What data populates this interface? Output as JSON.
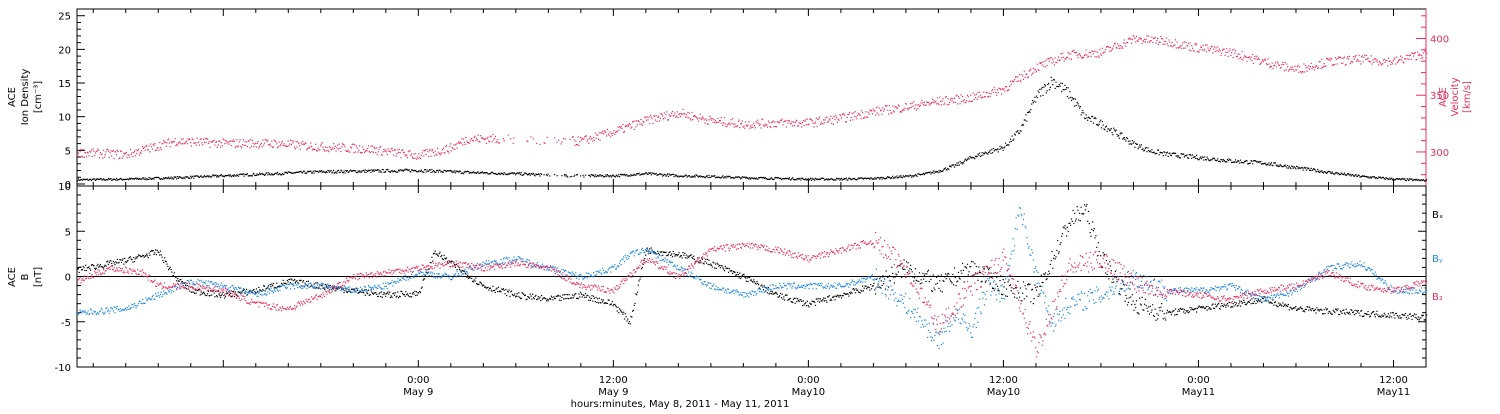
{
  "colors": {
    "black": "#000000",
    "red": "#e8305e",
    "blue": "#1e88e5"
  },
  "x_axis": {
    "title": "hours:minutes, May  8, 2011 - May 11, 2011",
    "range_hours": [
      -21,
      62
    ],
    "ticks": [
      {
        "t": 0,
        "time": "0:00",
        "date": "May 9"
      },
      {
        "t": 12,
        "time": "12:00",
        "date": "May 9"
      },
      {
        "t": 24,
        "time": "0:00",
        "date": "May10"
      },
      {
        "t": 36,
        "time": "12:00",
        "date": "May10"
      },
      {
        "t": 48,
        "time": "0:00",
        "date": "May11"
      },
      {
        "t": 60,
        "time": "12:00",
        "date": "May11"
      }
    ]
  },
  "chart_data": [
    {
      "type": "scatter",
      "panel": "top",
      "left_axis": {
        "label_lines": [
          "ACE",
          "Ion Density",
          "[cm⁻³]"
        ],
        "range": [
          -0.3,
          26
        ],
        "ticks": [
          0,
          5,
          10,
          15,
          20,
          25
        ],
        "color": "black"
      },
      "right_axis": {
        "label_lines": [
          "ACE",
          "Velocity",
          "[km/s]"
        ],
        "range": [
          270,
          426
        ],
        "ticks": [
          300,
          350,
          400
        ],
        "color": "red"
      },
      "series": [
        {
          "axis": "left",
          "color": "black",
          "x": [
            -21,
            -18,
            -15,
            -12,
            -9,
            -6,
            -3,
            0,
            3,
            6,
            9,
            12,
            14,
            16,
            18,
            20,
            22,
            24,
            26,
            28,
            30,
            31,
            32,
            33,
            34,
            35,
            36,
            37,
            38,
            39,
            40,
            41,
            42,
            43,
            44,
            45,
            46,
            48,
            50,
            52,
            54,
            56,
            58,
            60,
            62
          ],
          "y": [
            0.7,
            0.8,
            1.0,
            1.3,
            1.6,
            1.9,
            2.0,
            2.1,
            1.8,
            1.6,
            1.3,
            1.3,
            1.6,
            1.3,
            1.2,
            1.0,
            0.9,
            0.8,
            0.8,
            0.9,
            1.2,
            1.5,
            2.0,
            2.8,
            4.0,
            4.8,
            5.5,
            8.0,
            13.0,
            15.5,
            13.5,
            10.0,
            9.0,
            7.5,
            6.0,
            5.0,
            4.5,
            4.0,
            3.5,
            3.2,
            2.5,
            1.8,
            1.2,
            0.8,
            0.6
          ]
        },
        {
          "axis": "right",
          "color": "red",
          "x": [
            -21,
            -18,
            -15,
            -12,
            -9,
            -6,
            -3,
            0,
            2,
            3,
            5,
            8,
            10,
            12,
            14,
            16,
            18,
            20,
            22,
            24,
            26,
            28,
            30,
            32,
            34,
            36,
            38,
            40,
            42,
            44,
            46,
            48,
            50,
            52,
            54,
            56,
            58,
            60,
            62
          ],
          "y": [
            300,
            298,
            310,
            308,
            308,
            305,
            303,
            297,
            304,
            312,
            312,
            310,
            310,
            318,
            328,
            335,
            328,
            325,
            326,
            326,
            330,
            336,
            340,
            345,
            348,
            356,
            375,
            386,
            388,
            400,
            398,
            392,
            388,
            380,
            373,
            380,
            382,
            380,
            388
          ]
        }
      ]
    },
    {
      "type": "scatter",
      "panel": "bottom",
      "left_axis": {
        "label_lines": [
          "ACE",
          "B",
          "[nT]"
        ],
        "range": [
          -10,
          10
        ],
        "ticks": [
          -10,
          -5,
          0,
          5,
          10
        ]
      },
      "legend": [
        "Bₓ",
        "Bᵧ",
        "B₂"
      ],
      "series": [
        {
          "name": "Bₓ",
          "color": "black",
          "x": [
            -21,
            -18,
            -16,
            -15,
            -14,
            -12,
            -10,
            -8,
            -6,
            -4,
            -2,
            0,
            1,
            2,
            4,
            6,
            8,
            10,
            12,
            13,
            14,
            16,
            18,
            20,
            22,
            24,
            26,
            28,
            30,
            32,
            34,
            36,
            38,
            40,
            41,
            42,
            44,
            46,
            48,
            50,
            52,
            54,
            56,
            58,
            60,
            62
          ],
          "y": [
            0.8,
            1.8,
            2.8,
            0,
            -1.5,
            -2.0,
            -1.5,
            -0.5,
            -1.0,
            -1.5,
            -2.0,
            -1.8,
            2.8,
            1.5,
            -1.0,
            -2.0,
            -2.5,
            -2.0,
            -3.0,
            -5.0,
            3.0,
            2.5,
            1.5,
            0,
            -2.0,
            -3.0,
            -2.0,
            -1.0,
            1.0,
            -1.0,
            1.0,
            -1.0,
            -2.0,
            6.0,
            7.5,
            2.0,
            -3.0,
            -4.0,
            -3.5,
            -3.0,
            -2.5,
            -3.5,
            -3.8,
            -4.0,
            -4.2,
            -4.5
          ]
        },
        {
          "name": "Bᵧ",
          "color": "blue",
          "x": [
            -21,
            -18,
            -16,
            -14,
            -12,
            -10,
            -8,
            -6,
            -4,
            -2,
            0,
            2,
            4,
            6,
            8,
            10,
            12,
            13,
            14,
            16,
            18,
            20,
            22,
            24,
            26,
            28,
            30,
            31,
            32,
            33,
            34,
            35,
            36,
            37,
            38,
            39,
            40,
            42,
            44,
            46,
            48,
            50,
            52,
            54,
            56,
            58,
            60,
            62
          ],
          "y": [
            -4.0,
            -3.5,
            -2.0,
            -0.5,
            -1.0,
            -2.0,
            -1.0,
            -1.0,
            -1.5,
            -1.0,
            0.5,
            0,
            1.5,
            2.0,
            1.0,
            0,
            1.0,
            2.5,
            3.0,
            1.0,
            -1.0,
            -2.0,
            -1.0,
            -1.0,
            -1.0,
            0,
            -3.0,
            -5.0,
            -7.0,
            -4.0,
            -6.0,
            -1.0,
            -2.0,
            8.0,
            0,
            -5.0,
            -3.0,
            -2.0,
            0,
            -1.5,
            -1.5,
            -1.0,
            -2.5,
            -1.5,
            1.0,
            1.5,
            -1.5,
            -1.5
          ]
        },
        {
          "name": "B₂",
          "color": "red",
          "x": [
            -21,
            -19,
            -17,
            -16,
            -14,
            -12,
            -10,
            -8,
            -6,
            -4,
            -2,
            0,
            2,
            4,
            6,
            8,
            10,
            12,
            14,
            16,
            18,
            20,
            22,
            24,
            26,
            28,
            30,
            32,
            34,
            36,
            38,
            40,
            42,
            44,
            46,
            48,
            50,
            52,
            54,
            56,
            58,
            60,
            62
          ],
          "y": [
            -0.5,
            1.0,
            0.5,
            -1.0,
            -1.0,
            -1.5,
            -3.0,
            -3.5,
            -2.0,
            0,
            0.5,
            1.0,
            1.5,
            1.0,
            1.5,
            1.0,
            -1.0,
            -1.5,
            2.0,
            0,
            3.0,
            3.5,
            3.0,
            2.0,
            3.0,
            4.0,
            1.0,
            -5.5,
            -1.0,
            2.0,
            -8.0,
            1.0,
            2.0,
            -0.5,
            -1.5,
            -2.0,
            -2.5,
            -1.5,
            -1.0,
            0.5,
            -1.0,
            -1.5,
            -0.5
          ]
        }
      ]
    }
  ]
}
